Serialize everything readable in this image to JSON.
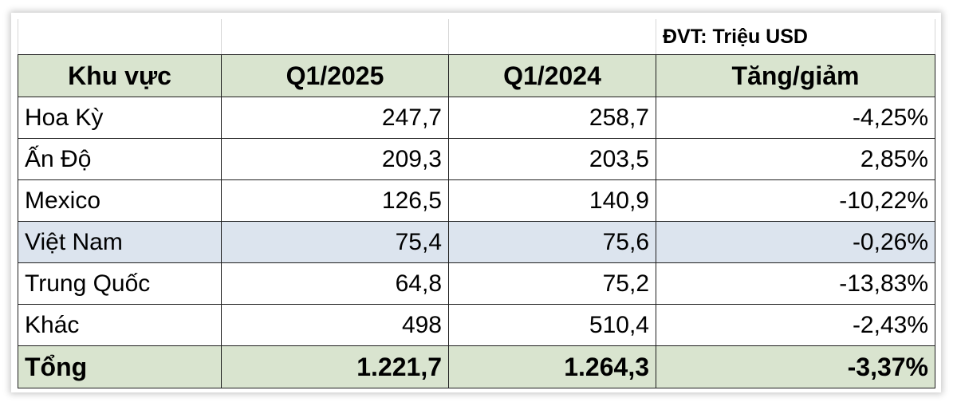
{
  "unit_label": "ĐVT: Triệu USD",
  "columns": [
    "Khu vực",
    "Q1/2025",
    "Q1/2024",
    "Tăng/giảm"
  ],
  "rows": [
    {
      "region": "Hoa Kỳ",
      "q1_2025": "247,7",
      "q1_2024": "258,7",
      "change": "-4,25%"
    },
    {
      "region": "Ấn Độ",
      "q1_2025": "209,3",
      "q1_2024": "203,5",
      "change": "2,85%"
    },
    {
      "region": "Mexico",
      "q1_2025": "126,5",
      "q1_2024": "140,9",
      "change": "-10,22%"
    },
    {
      "region": "Việt Nam",
      "q1_2025": "75,4",
      "q1_2024": "75,6",
      "change": "-0,26%"
    },
    {
      "region": "Trung Quốc",
      "q1_2025": "64,8",
      "q1_2024": "75,2",
      "change": "-13,83%"
    },
    {
      "region": "Khác",
      "q1_2025": "498",
      "q1_2024": "510,4",
      "change": "-2,43%"
    }
  ],
  "total": {
    "region": "Tổng",
    "q1_2025": "1.221,7",
    "q1_2024": "1.264,3",
    "change": "-3,37%"
  },
  "colors": {
    "header_bg": "#d9e4cf",
    "highlight_row_bg": "#dce4ee",
    "total_bg": "#d9e4cf"
  },
  "chart_data": {
    "type": "table",
    "title": "",
    "unit": "ĐVT: Triệu USD",
    "columns": [
      "Khu vực",
      "Q1/2025",
      "Q1/2024",
      "Tăng/giảm"
    ],
    "categories": [
      "Hoa Kỳ",
      "Ấn Độ",
      "Mexico",
      "Việt Nam",
      "Trung Quốc",
      "Khác",
      "Tổng"
    ],
    "series": [
      {
        "name": "Q1/2025",
        "values": [
          247.7,
          209.3,
          126.5,
          75.4,
          64.8,
          498,
          1221.7
        ]
      },
      {
        "name": "Q1/2024",
        "values": [
          258.7,
          203.5,
          140.9,
          75.6,
          75.2,
          510.4,
          1264.3
        ]
      },
      {
        "name": "Tăng/giảm",
        "values": [
          -4.25,
          2.85,
          -10.22,
          -0.26,
          -13.83,
          -2.43,
          -3.37
        ]
      }
    ],
    "highlighted_category": "Việt Nam"
  }
}
